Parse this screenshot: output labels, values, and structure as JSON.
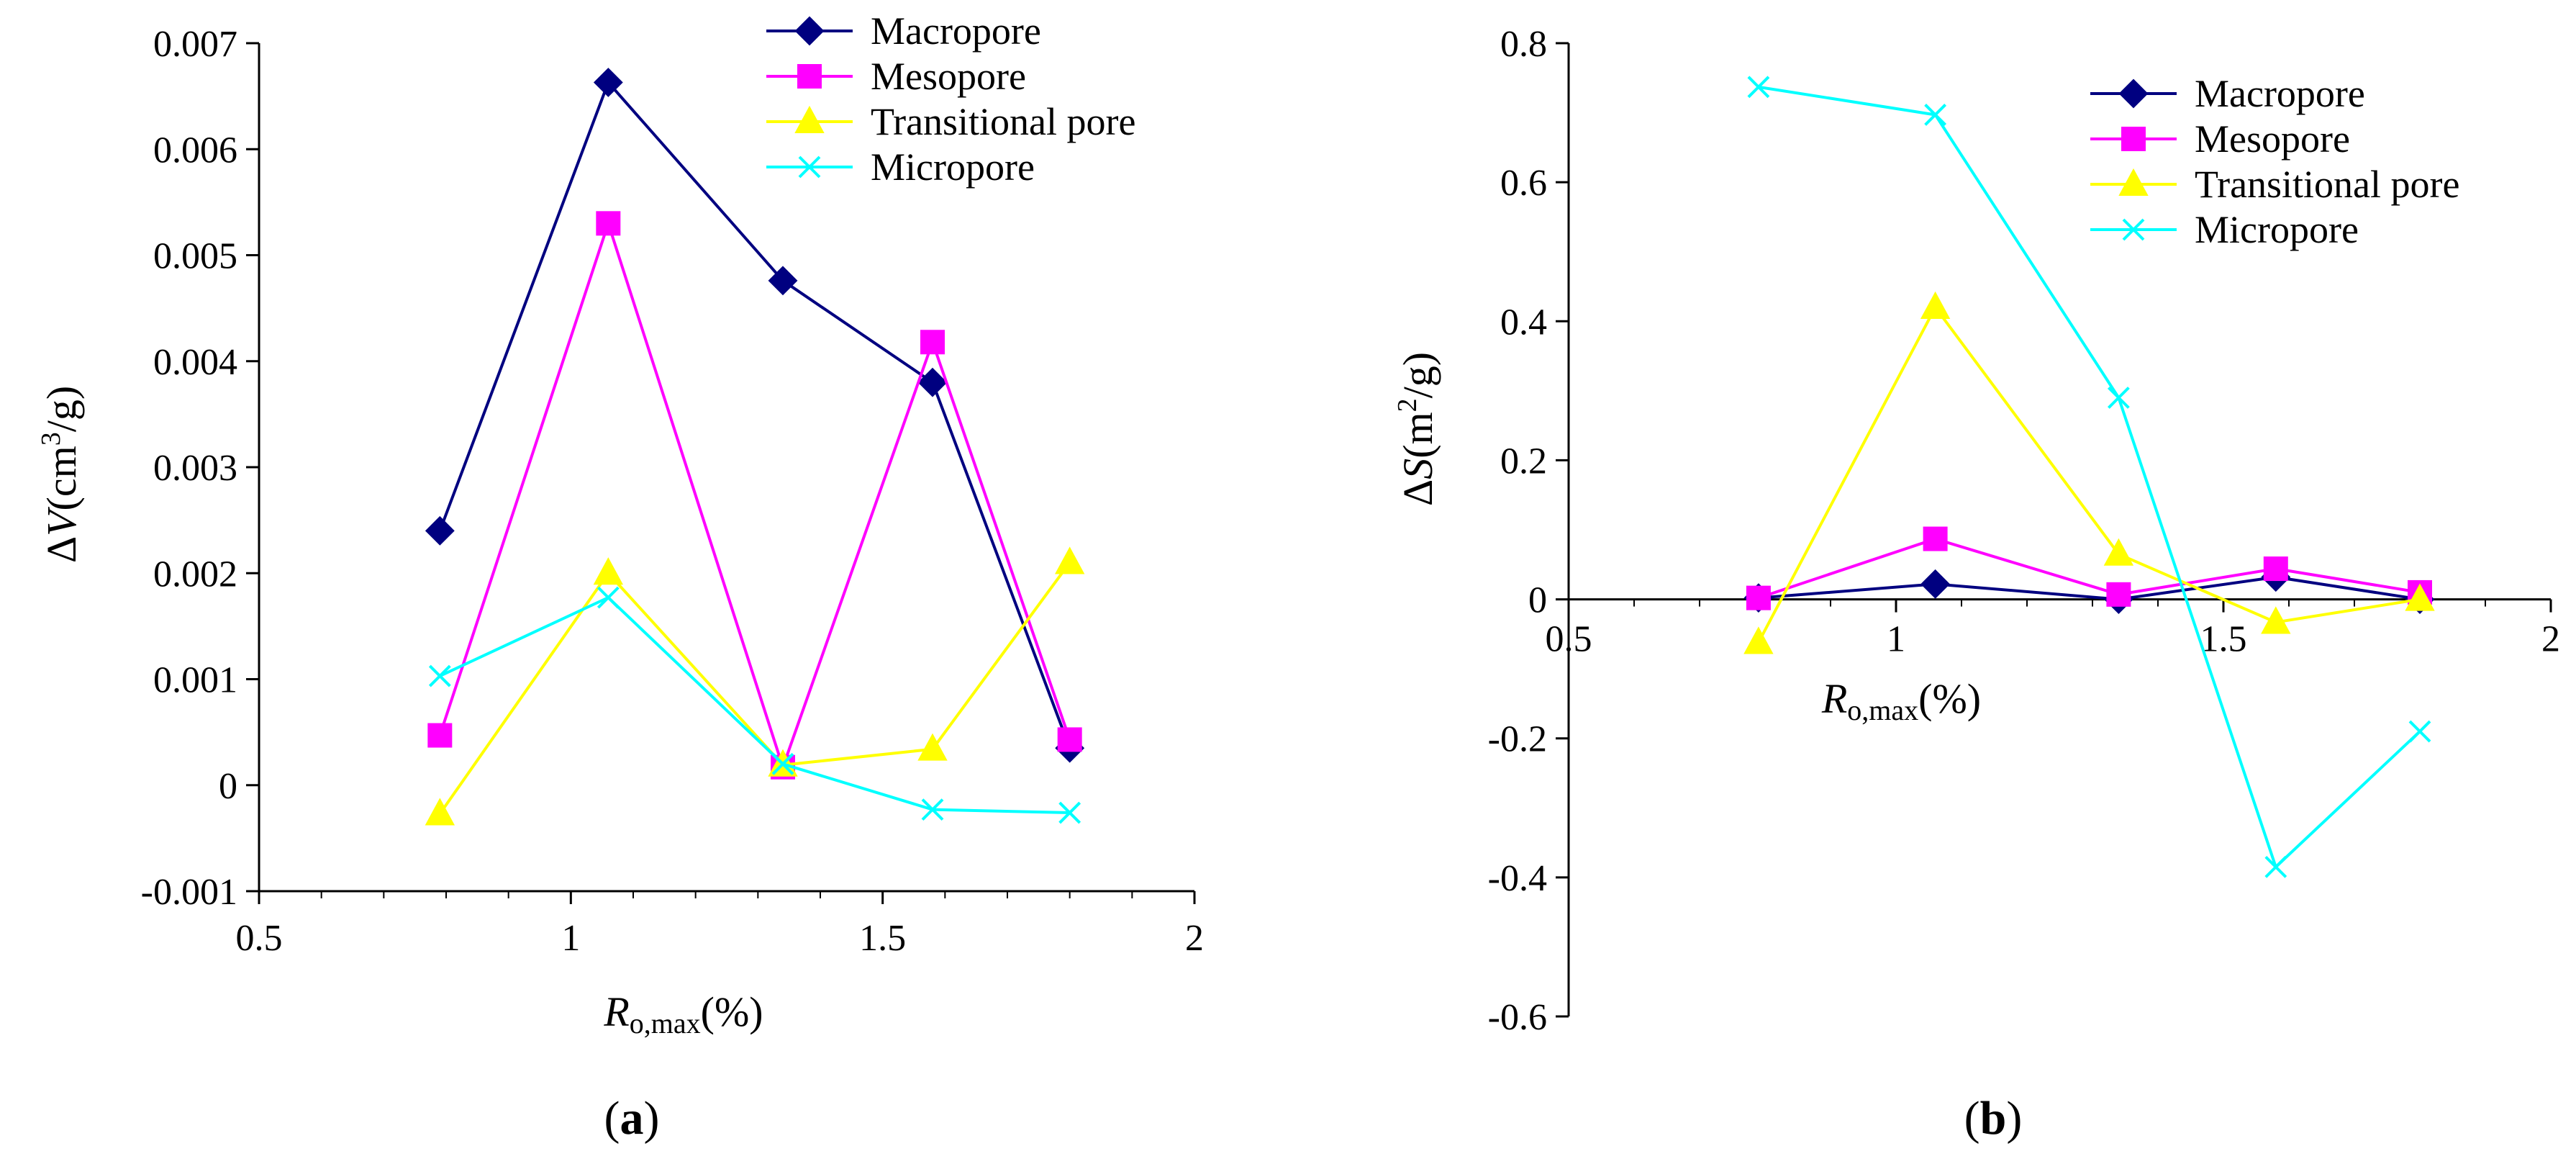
{
  "chart_data": [
    {
      "type": "line",
      "panel_label": "a",
      "xlabel": {
        "main": "R",
        "sub": "o,max",
        "unit": "(%)"
      },
      "ylabel": {
        "prefix": "Δ",
        "var": "V",
        "unit_open": "(cm",
        "sup": "3",
        "unit_close": "/g)"
      },
      "xlim": [
        0.5,
        2
      ],
      "ylim": [
        -0.001,
        0.007
      ],
      "xticks": [
        "0.5",
        "1",
        "1.5",
        "2"
      ],
      "yticks": [
        "-0.001",
        "0",
        "0.001",
        "0.002",
        "0.003",
        "0.004",
        "0.005",
        "0.006",
        "0.007"
      ],
      "x": [
        0.79,
        1.06,
        1.34,
        1.58,
        1.8
      ],
      "legend_position": "top-right",
      "series": [
        {
          "name": "Macropore",
          "color": "#000080",
          "marker": "diamond",
          "values": [
            0.0024,
            0.00663,
            0.00476,
            0.0038,
            0.00035
          ]
        },
        {
          "name": "Mesopore",
          "color": "#ff00ff",
          "marker": "square",
          "values": [
            0.00047,
            0.0053,
            0.00017,
            0.00418,
            0.00043
          ]
        },
        {
          "name": "Transitional pore",
          "color": "#ffff00",
          "marker": "triangle",
          "values": [
            -0.00027,
            0.002,
            0.00019,
            0.00034,
            0.0021
          ]
        },
        {
          "name": "Micropore",
          "color": "#00ffff",
          "marker": "x",
          "values": [
            0.00103,
            0.00177,
            0.0002,
            -0.00023,
            -0.00026
          ]
        }
      ]
    },
    {
      "type": "line",
      "panel_label": "b",
      "xlabel": {
        "main": "R",
        "sub": "o,max",
        "unit": "(%)"
      },
      "ylabel": {
        "prefix": "Δ",
        "var": "S",
        "unit_open": "(m",
        "sup": "2",
        "unit_close": "/g)"
      },
      "xlim": [
        0.5,
        2
      ],
      "ylim": [
        -0.6,
        0.8
      ],
      "xticks": [
        "0.5",
        "1",
        "1.5",
        "2"
      ],
      "yticks": [
        "-0.6",
        "-0.4",
        "-0.2",
        "0",
        "0.2",
        "0.4",
        "0.6",
        "0.8"
      ],
      "x": [
        0.79,
        1.06,
        1.34,
        1.58,
        1.8
      ],
      "legend_position": "top-right",
      "series": [
        {
          "name": "Macropore",
          "color": "#000080",
          "marker": "diamond",
          "values": [
            0.002,
            0.022,
            0.0,
            0.032,
            0.0
          ]
        },
        {
          "name": "Mesopore",
          "color": "#ff00ff",
          "marker": "square",
          "values": [
            0.002,
            0.087,
            0.007,
            0.044,
            0.01
          ]
        },
        {
          "name": "Transitional pore",
          "color": "#ffff00",
          "marker": "triangle",
          "values": [
            -0.062,
            0.42,
            0.065,
            -0.033,
            0.0
          ]
        },
        {
          "name": "Micropore",
          "color": "#00ffff",
          "marker": "x",
          "values": [
            0.737,
            0.697,
            0.29,
            -0.385,
            -0.19
          ]
        }
      ]
    }
  ]
}
